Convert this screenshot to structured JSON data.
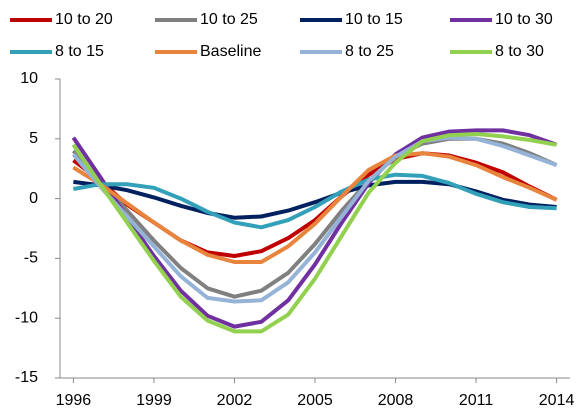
{
  "chart_data": {
    "type": "line",
    "x": [
      1996,
      1997,
      1998,
      1999,
      2000,
      2001,
      2002,
      2003,
      2004,
      2005,
      2006,
      2007,
      2008,
      2009,
      2010,
      2011,
      2012,
      2013,
      2014
    ],
    "xlim": [
      1995.5,
      2014.5
    ],
    "xticks": [
      1996,
      1999,
      2002,
      2005,
      2008,
      2011,
      2014
    ],
    "ylim": [
      -15,
      10
    ],
    "yticks": [
      -15,
      -10,
      -5,
      0,
      5,
      10
    ],
    "grid": false,
    "legend": "top",
    "series": [
      {
        "name": "10 to 20",
        "color": "#c00000",
        "values": [
          3.2,
          1.5,
          -0.5,
          -2.0,
          -3.5,
          -4.5,
          -4.8,
          -4.4,
          -3.3,
          -1.8,
          0.2,
          2.0,
          3.3,
          3.8,
          3.6,
          3.0,
          2.2,
          1.0,
          -0.1
        ]
      },
      {
        "name": "10 to 25",
        "color": "#808080",
        "values": [
          4.0,
          1.5,
          -1.0,
          -3.5,
          -5.8,
          -7.5,
          -8.2,
          -7.7,
          -6.2,
          -3.8,
          -1.0,
          1.5,
          3.5,
          4.6,
          5.0,
          5.0,
          4.6,
          3.8,
          2.8
        ]
      },
      {
        "name": "10 to 15",
        "color": "#002060",
        "values": [
          1.4,
          1.1,
          0.7,
          0.1,
          -0.6,
          -1.2,
          -1.6,
          -1.5,
          -1.0,
          -0.3,
          0.5,
          1.1,
          1.4,
          1.4,
          1.2,
          0.6,
          -0.1,
          -0.5,
          -0.7
        ]
      },
      {
        "name": "10 to 30",
        "color": "#7030a0",
        "values": [
          5.1,
          1.8,
          -1.6,
          -4.8,
          -7.7,
          -9.8,
          -10.7,
          -10.3,
          -8.5,
          -5.5,
          -2.0,
          1.3,
          3.7,
          5.1,
          5.6,
          5.7,
          5.7,
          5.3,
          4.5
        ]
      },
      {
        "name": "8 to 15",
        "color": "#31a0b8",
        "values": [
          0.8,
          1.2,
          1.2,
          0.9,
          0.0,
          -1.1,
          -2.0,
          -2.4,
          -1.8,
          -0.7,
          0.6,
          1.6,
          2.0,
          1.9,
          1.3,
          0.4,
          -0.3,
          -0.7,
          -0.8
        ]
      },
      {
        "name": "Baseline",
        "color": "#e8843c",
        "values": [
          2.6,
          1.2,
          -0.4,
          -2.0,
          -3.5,
          -4.7,
          -5.3,
          -5.3,
          -4.0,
          -2.1,
          0.2,
          2.4,
          3.6,
          3.8,
          3.5,
          2.8,
          1.8,
          0.9,
          -0.1
        ]
      },
      {
        "name": "8 to 25",
        "color": "#95b3d7",
        "values": [
          3.7,
          1.0,
          -1.5,
          -4.0,
          -6.5,
          -8.3,
          -8.6,
          -8.5,
          -7.0,
          -4.5,
          -1.5,
          1.5,
          3.5,
          4.8,
          5.1,
          5.0,
          4.4,
          3.6,
          2.8
        ]
      },
      {
        "name": "8 to 30",
        "color": "#92d050",
        "values": [
          4.5,
          1.2,
          -2.0,
          -5.2,
          -8.2,
          -10.2,
          -11.1,
          -11.1,
          -9.7,
          -6.7,
          -3.1,
          0.5,
          3.0,
          4.8,
          5.3,
          5.4,
          5.2,
          4.9,
          4.5
        ]
      }
    ]
  }
}
